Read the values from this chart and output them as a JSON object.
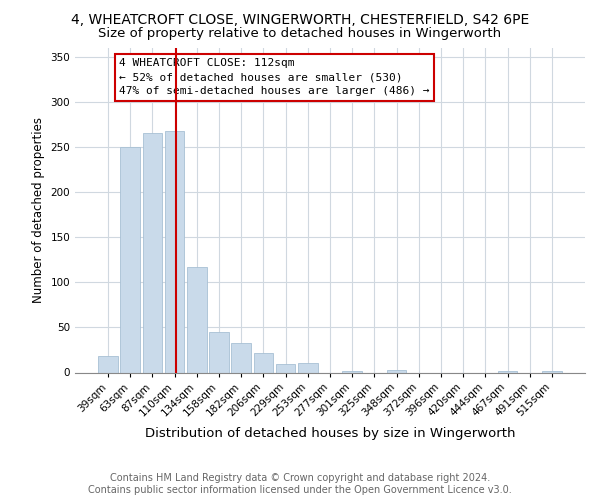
{
  "title": "4, WHEATCROFT CLOSE, WINGERWORTH, CHESTERFIELD, S42 6PE",
  "subtitle": "Size of property relative to detached houses in Wingerworth",
  "xlabel": "Distribution of detached houses by size in Wingerworth",
  "ylabel": "Number of detached properties",
  "bar_labels": [
    "39sqm",
    "63sqm",
    "87sqm",
    "110sqm",
    "134sqm",
    "158sqm",
    "182sqm",
    "206sqm",
    "229sqm",
    "253sqm",
    "277sqm",
    "301sqm",
    "325sqm",
    "348sqm",
    "372sqm",
    "396sqm",
    "420sqm",
    "444sqm",
    "467sqm",
    "491sqm",
    "515sqm"
  ],
  "bar_values": [
    18,
    250,
    265,
    268,
    117,
    45,
    33,
    22,
    9,
    11,
    0,
    2,
    0,
    3,
    0,
    0,
    0,
    0,
    2,
    0,
    2
  ],
  "bar_color": "#c9daea",
  "bar_edge_color": "#a8c0d4",
  "vline_x_index": 3,
  "vline_color": "#cc0000",
  "annotation_title": "4 WHEATCROFT CLOSE: 112sqm",
  "annotation_line1": "← 52% of detached houses are smaller (530)",
  "annotation_line2": "47% of semi-detached houses are larger (486) →",
  "annotation_box_color": "#ffffff",
  "annotation_box_edge": "#cc0000",
  "ylim": [
    0,
    360
  ],
  "yticks": [
    0,
    50,
    100,
    150,
    200,
    250,
    300,
    350
  ],
  "footer1": "Contains HM Land Registry data © Crown copyright and database right 2024.",
  "footer2": "Contains public sector information licensed under the Open Government Licence v3.0.",
  "title_fontsize": 10,
  "subtitle_fontsize": 9.5,
  "xlabel_fontsize": 9.5,
  "ylabel_fontsize": 8.5,
  "tick_fontsize": 7.5,
  "annotation_fontsize": 8,
  "footer_fontsize": 7
}
